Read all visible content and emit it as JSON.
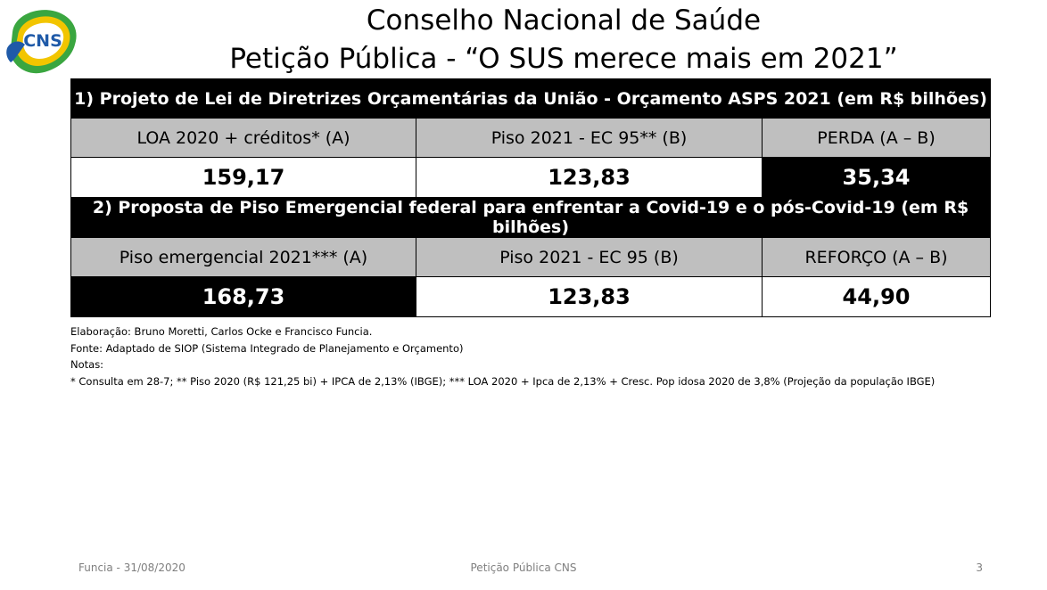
{
  "logo": {
    "text": "CNS"
  },
  "title": {
    "line1": "Conselho Nacional de Saúde",
    "line2": "Petição Pública - “O SUS merece mais em 2021”"
  },
  "section1": {
    "heading": "1) Projeto de Lei de Diretrizes Orçamentárias da União - Orçamento ASPS 2021 (em R$ bilhões)",
    "headers": [
      "LOA 2020 + créditos* (A)",
      "Piso 2021 - EC 95** (B)",
      "PERDA (A – B)"
    ],
    "values": [
      "159,17",
      "123,83",
      "35,34"
    ]
  },
  "section2": {
    "heading": "2) Proposta de Piso Emergencial federal para enfrentar a Covid-19 e o pós-Covid-19 (em R$ bilhões)",
    "headers": [
      "Piso emergencial 2021*** (A)",
      "Piso 2021 - EC 95 (B)",
      "REFORÇO (A – B)"
    ],
    "values": [
      "168,73",
      "123,83",
      "44,90"
    ]
  },
  "notes": [
    "Elaboração: Bruno Moretti, Carlos Ocke e Francisco Funcia.",
    "Fonte: Adaptado de SIOP (Sistema Integrado de Planejamento e Orçamento)",
    "Notas:",
    "* Consulta em 28-7; ** Piso 2020 (R$ 121,25 bi) + IPCA de 2,13% (IBGE); *** LOA 2020 + Ipca de 2,13% + Cresc. Pop idosa 2020 de 3,8% (Projeção da população IBGE)"
  ],
  "footer": {
    "left": "Funcia - 31/08/2020",
    "center": "Petição Pública CNS",
    "page": "3"
  },
  "colors": {
    "dark": "#000000",
    "header_gray": "#bfbfbf",
    "logo_blue": "#1f5aa8",
    "logo_green": "#3aa640",
    "logo_yellow": "#f2c500"
  }
}
